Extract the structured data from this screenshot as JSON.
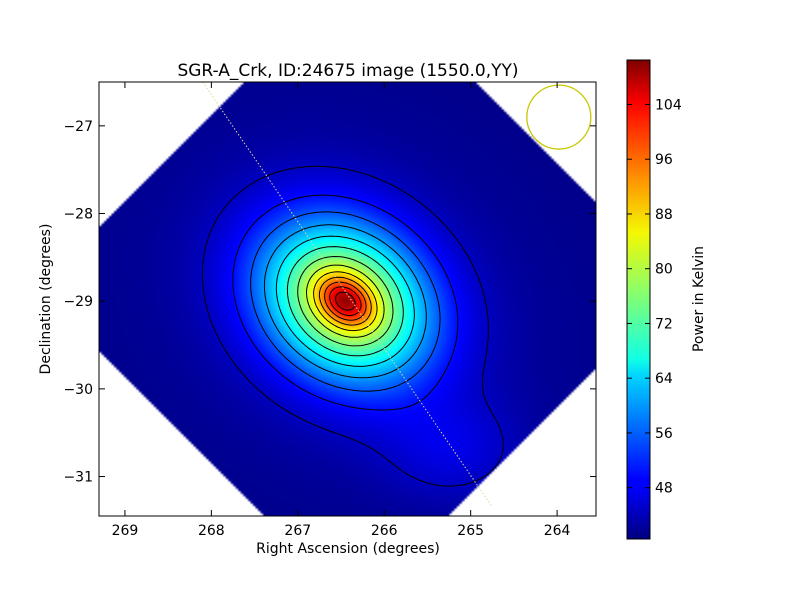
{
  "chart_data": {
    "type": "heatmap",
    "title": "SGR-A_Crk, ID:24675 image (1550.0,YY)",
    "xlabel": "Right Ascension (degrees)",
    "ylabel": "Declination (degrees)",
    "xlim": [
      269.3,
      263.55
    ],
    "ylim": [
      -31.45,
      -26.5
    ],
    "x_ticks": [
      269,
      268,
      267,
      266,
      265,
      264
    ],
    "x_tick_labels": [
      "269",
      "268",
      "267",
      "266",
      "265",
      "264"
    ],
    "y_ticks": [
      -27,
      -28,
      -29,
      -30,
      -31
    ],
    "y_tick_labels": [
      "−27",
      "−28",
      "−29",
      "−30",
      "−31"
    ],
    "colorbar": {
      "label": "Power in Kelvin",
      "min": 40.5,
      "max": 110.5,
      "ticks": [
        48,
        56,
        64,
        72,
        80,
        88,
        96,
        104
      ],
      "tick_labels": [
        "48",
        "56",
        "64",
        "72",
        "80",
        "88",
        "96",
        "104"
      ],
      "colormap": "jet"
    },
    "source": {
      "name": "SGR-A",
      "ra": 266.45,
      "dec": -29.0,
      "peak": 109,
      "base": 41,
      "ridge_angle_deg": 35
    },
    "contour_levels": [
      45,
      50,
      55,
      60,
      65,
      70,
      75,
      80,
      85,
      90,
      95,
      100,
      105
    ],
    "beam_circle": {
      "ra": 263.98,
      "dec": -26.9,
      "radius_deg": 0.37,
      "color": "#c8c800"
    },
    "track_line": {
      "from": [
        268.1,
        -26.5
      ],
      "to": [
        264.75,
        -31.35
      ],
      "color": "#d8d8a0"
    }
  }
}
